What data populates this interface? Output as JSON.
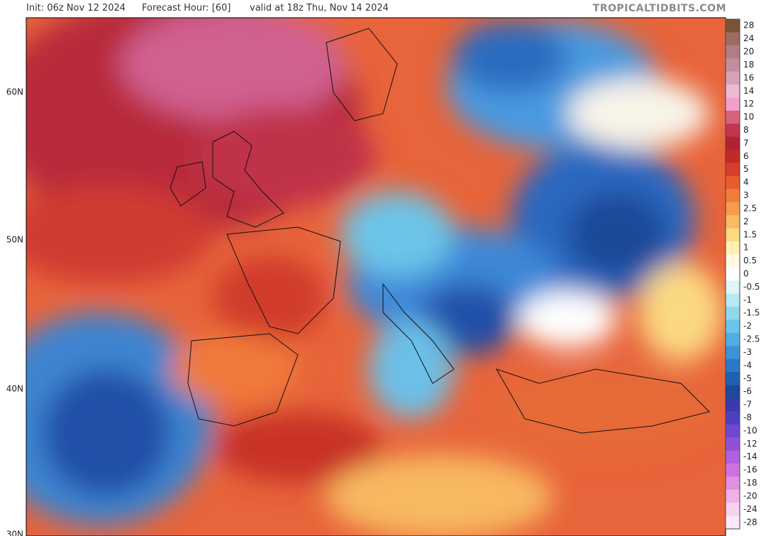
{
  "header": {
    "init": "Init: 06z Nov 12 2024",
    "forecast_hour": "Forecast Hour: [60]",
    "valid": "valid at 18z Thu, Nov 14 2024",
    "site": "TROPICALTIDBITS.COM"
  },
  "map": {
    "latitude_labels": [
      "60N",
      "50N",
      "40N",
      "30N"
    ]
  },
  "colorbar": [
    {
      "label": "28",
      "color": "#7a5234"
    },
    {
      "label": "24",
      "color": "#9c6c60"
    },
    {
      "label": "20",
      "color": "#b27c84"
    },
    {
      "label": "18",
      "color": "#c48c9c"
    },
    {
      "label": "16",
      "color": "#d6a2b6"
    },
    {
      "label": "14",
      "color": "#ecbad4"
    },
    {
      "label": "12",
      "color": "#f2a0ca"
    },
    {
      "label": "10",
      "color": "#d6627e"
    },
    {
      "label": "8",
      "color": "#c23452"
    },
    {
      "label": "7",
      "color": "#b02232"
    },
    {
      "label": "6",
      "color": "#c22a28"
    },
    {
      "label": "5",
      "color": "#d83c2a"
    },
    {
      "label": "4",
      "color": "#e85c30"
    },
    {
      "label": "3",
      "color": "#f07c3c"
    },
    {
      "label": "2.5",
      "color": "#f59c4a"
    },
    {
      "label": "2",
      "color": "#f8ba62"
    },
    {
      "label": "1.5",
      "color": "#fbd882"
    },
    {
      "label": "1",
      "color": "#fdf0b2"
    },
    {
      "label": "0.5",
      "color": "#fff9e2"
    },
    {
      "label": "0",
      "color": "#ffffff"
    },
    {
      "label": "-0.5",
      "color": "#e0f4fa"
    },
    {
      "label": "-1",
      "color": "#b8e8f4"
    },
    {
      "label": "-1.5",
      "color": "#90d8ee"
    },
    {
      "label": "-2",
      "color": "#6cc4e8"
    },
    {
      "label": "-2.5",
      "color": "#50aee0"
    },
    {
      "label": "-3",
      "color": "#3c94d8"
    },
    {
      "label": "-4",
      "color": "#2c78c8"
    },
    {
      "label": "-5",
      "color": "#2060b0"
    },
    {
      "label": "-6",
      "color": "#1a4a98"
    },
    {
      "label": "-7",
      "color": "#3a3ab0"
    },
    {
      "label": "-8",
      "color": "#5040c0"
    },
    {
      "label": "-10",
      "color": "#7048d0"
    },
    {
      "label": "-12",
      "color": "#9050d8"
    },
    {
      "label": "-14",
      "color": "#b060e0"
    },
    {
      "label": "-16",
      "color": "#d070e0"
    },
    {
      "label": "-18",
      "color": "#e090e0"
    },
    {
      "label": "-20",
      "color": "#f0b0e8"
    },
    {
      "label": "-24",
      "color": "#f8d0f0"
    },
    {
      "label": "-28",
      "color": "#fce8f8"
    }
  ]
}
